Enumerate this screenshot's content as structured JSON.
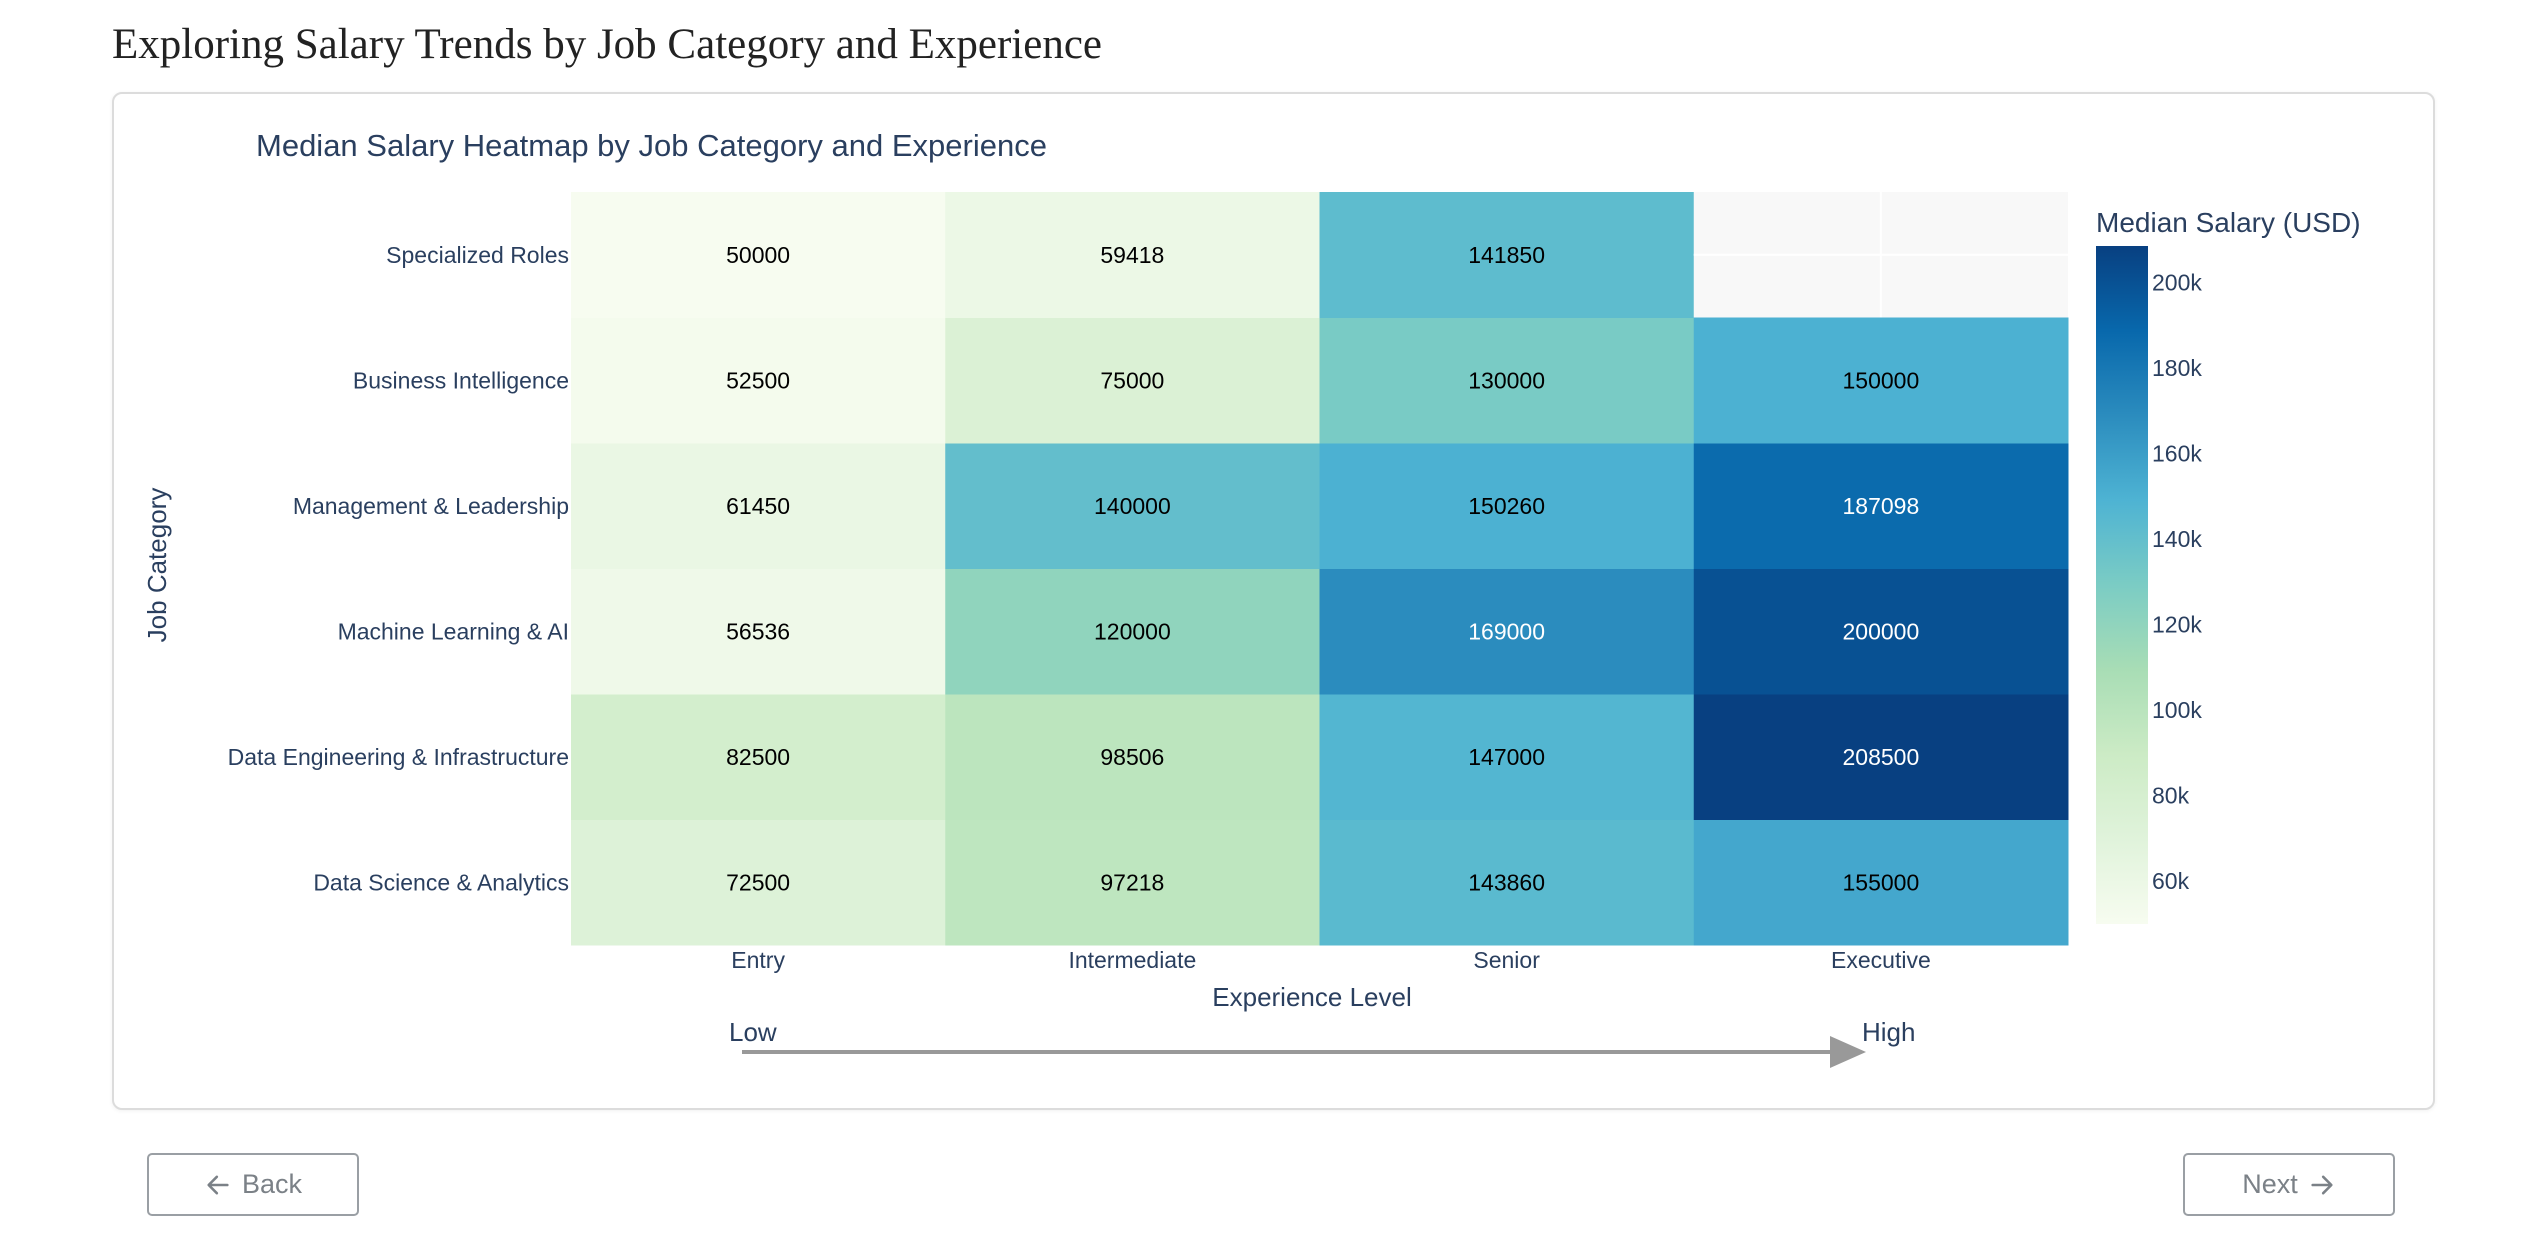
{
  "page": {
    "title": "Exploring Salary Trends by Job Category and Experience"
  },
  "nav": {
    "back_label": "Back",
    "back_icon": "arrow-left-icon",
    "next_label": "Next",
    "next_icon": "arrow-right-icon"
  },
  "chart_data": {
    "type": "heatmap",
    "title": "Median Salary Heatmap by Job Category and Experience",
    "xlabel": "Experience Level",
    "ylabel": "Job Category",
    "x_categories": [
      "Entry",
      "Intermediate",
      "Senior",
      "Executive"
    ],
    "y_categories": [
      "Data Science & Analytics",
      "Data Engineering & Infrastructure",
      "Machine Learning & AI",
      "Management & Leadership",
      "Business Intelligence",
      "Specialized Roles"
    ],
    "values": [
      [
        72500,
        97218,
        143860,
        155000
      ],
      [
        82500,
        98506,
        147000,
        208500
      ],
      [
        56536,
        120000,
        169000,
        200000
      ],
      [
        61450,
        140000,
        150260,
        187098
      ],
      [
        52500,
        75000,
        130000,
        150000
      ],
      [
        50000,
        59418,
        141850,
        null
      ]
    ],
    "colorscale": "GnBu",
    "colorbar": {
      "title": "Median Salary (USD)",
      "range": [
        50000,
        208500
      ],
      "ticks": [
        60000,
        80000,
        100000,
        120000,
        140000,
        160000,
        180000,
        200000
      ],
      "tick_labels": [
        "60k",
        "80k",
        "100k",
        "120k",
        "140k",
        "160k",
        "180k",
        "200k"
      ]
    },
    "annotation": {
      "low_label": "Low",
      "high_label": "High",
      "arrow_color": "#999999"
    },
    "colors": {
      "title": "#2a3f5f",
      "missing_cell": "#f8f8f8"
    }
  }
}
